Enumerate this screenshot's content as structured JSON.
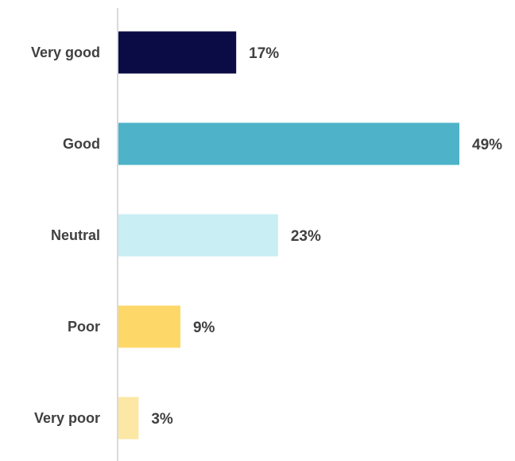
{
  "chart_data": {
    "type": "bar",
    "orientation": "horizontal",
    "categories": [
      "Very good",
      "Good",
      "Neutral",
      "Poor",
      "Very poor"
    ],
    "values": [
      17,
      49,
      23,
      9,
      3
    ],
    "value_labels": [
      "17%",
      "49%",
      "23%",
      "9%",
      "3%"
    ],
    "colors": [
      "#0b0b45",
      "#4eb3c8",
      "#c9eef4",
      "#fdd868",
      "#fde7a4"
    ],
    "value_unit": "%",
    "xlim": [
      0,
      50
    ],
    "grid": false,
    "legend": "none",
    "title": "",
    "xlabel": "",
    "ylabel": ""
  }
}
